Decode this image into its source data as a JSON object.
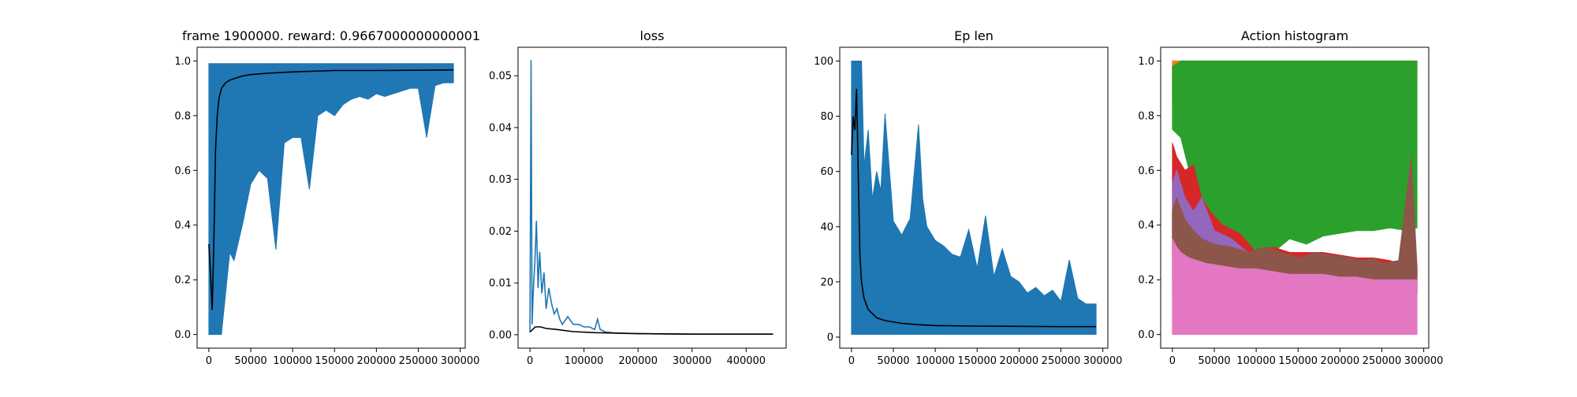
{
  "chart_data": [
    {
      "type": "line",
      "title": "frame 1900000. reward: 0.9667000000000001",
      "xlabel": "",
      "ylabel": "",
      "xlim": [
        -14000,
        306000
      ],
      "ylim": [
        -0.05,
        1.05
      ],
      "xticks": [
        0,
        50000,
        100000,
        150000,
        200000,
        250000,
        300000
      ],
      "yticks": [
        0.0,
        0.2,
        0.4,
        0.6,
        0.8,
        1.0
      ],
      "xtick_labels": [
        "0",
        "50000",
        "100000",
        "150000",
        "200000",
        "250000",
        "300000"
      ],
      "ytick_labels": [
        "0.0",
        "0.2",
        "0.4",
        "0.6",
        "0.8",
        "1.0"
      ],
      "grid": false,
      "series": [
        {
          "color": "#1f77b4",
          "style": "band",
          "x": [
            0,
            5000,
            10000,
            15000,
            20000,
            25000,
            30000,
            40000,
            50000,
            60000,
            70000,
            80000,
            90000,
            100000,
            110000,
            120000,
            130000,
            140000,
            150000,
            160000,
            170000,
            180000,
            190000,
            200000,
            210000,
            220000,
            230000,
            240000,
            250000,
            260000,
            270000,
            280000,
            292000
          ],
          "upper": [
            0.99,
            0.99,
            0.99,
            0.99,
            0.99,
            0.99,
            0.99,
            0.99,
            0.99,
            0.99,
            0.99,
            0.99,
            0.99,
            0.99,
            0.99,
            0.99,
            0.99,
            0.99,
            0.99,
            0.99,
            0.99,
            0.99,
            0.99,
            0.99,
            0.99,
            0.99,
            0.99,
            0.99,
            0.99,
            0.99,
            0.99,
            0.99,
            0.99
          ],
          "lower": [
            0.0,
            0.0,
            0.0,
            0.0,
            0.15,
            0.3,
            0.27,
            0.4,
            0.55,
            0.6,
            0.57,
            0.31,
            0.7,
            0.72,
            0.72,
            0.53,
            0.8,
            0.82,
            0.8,
            0.84,
            0.86,
            0.87,
            0.86,
            0.88,
            0.87,
            0.88,
            0.89,
            0.9,
            0.9,
            0.72,
            0.91,
            0.92,
            0.92
          ]
        },
        {
          "color": "#000000",
          "style": "line",
          "x": [
            0,
            2000,
            4000,
            6000,
            8000,
            10000,
            12000,
            15000,
            20000,
            25000,
            30000,
            40000,
            50000,
            70000,
            100000,
            150000,
            200000,
            250000,
            292000
          ],
          "values": [
            0.33,
            0.22,
            0.09,
            0.35,
            0.68,
            0.8,
            0.86,
            0.9,
            0.92,
            0.93,
            0.935,
            0.945,
            0.95,
            0.955,
            0.96,
            0.965,
            0.965,
            0.966,
            0.967
          ]
        }
      ]
    },
    {
      "type": "line",
      "title": "loss",
      "xlabel": "",
      "ylabel": "",
      "xlim": [
        -22000,
        474000
      ],
      "ylim": [
        -0.0026,
        0.0555
      ],
      "xticks": [
        0,
        100000,
        200000,
        300000,
        400000
      ],
      "yticks": [
        0.0,
        0.01,
        0.02,
        0.03,
        0.04,
        0.05
      ],
      "xtick_labels": [
        "0",
        "100000",
        "200000",
        "300000",
        "400000"
      ],
      "ytick_labels": [
        "0.00",
        "0.01",
        "0.02",
        "0.03",
        "0.04",
        "0.05"
      ],
      "grid": false,
      "series": [
        {
          "color": "#1f77b4",
          "style": "line",
          "x": [
            0,
            2000,
            4000,
            6000,
            9000,
            12000,
            15000,
            18000,
            22000,
            26000,
            30000,
            35000,
            40000,
            45000,
            50000,
            55000,
            60000,
            70000,
            80000,
            90000,
            100000,
            110000,
            120000,
            125000,
            130000,
            140000,
            160000,
            200000,
            300000,
            450000
          ],
          "values": [
            0.0005,
            0.053,
            0.002,
            0.008,
            0.014,
            0.022,
            0.009,
            0.016,
            0.008,
            0.012,
            0.005,
            0.009,
            0.006,
            0.004,
            0.005,
            0.003,
            0.002,
            0.0035,
            0.002,
            0.002,
            0.0015,
            0.0015,
            0.001,
            0.003,
            0.001,
            0.0005,
            0.0003,
            0.0002,
            0.0001,
            0.0001
          ]
        },
        {
          "color": "#000000",
          "style": "line",
          "x": [
            0,
            5000,
            10000,
            20000,
            30000,
            50000,
            80000,
            120000,
            200000,
            300000,
            450000
          ],
          "values": [
            0.0005,
            0.001,
            0.0015,
            0.0015,
            0.0012,
            0.001,
            0.0006,
            0.0004,
            0.0002,
            0.0001,
            0.0001
          ]
        }
      ]
    },
    {
      "type": "line",
      "title": "Ep len",
      "xlabel": "",
      "ylabel": "",
      "xlim": [
        -14000,
        306000
      ],
      "ylim": [
        -4,
        105
      ],
      "xticks": [
        0,
        50000,
        100000,
        150000,
        200000,
        250000,
        300000
      ],
      "yticks": [
        0,
        20,
        40,
        60,
        80,
        100
      ],
      "xtick_labels": [
        "0",
        "50000",
        "100000",
        "150000",
        "200000",
        "250000",
        "300000"
      ],
      "ytick_labels": [
        "0",
        "20",
        "40",
        "60",
        "80",
        "100"
      ],
      "grid": false,
      "series": [
        {
          "color": "#1f77b4",
          "style": "band",
          "x": [
            0,
            5000,
            10000,
            12000,
            15000,
            20000,
            25000,
            30000,
            35000,
            40000,
            50000,
            60000,
            70000,
            80000,
            85000,
            90000,
            100000,
            110000,
            120000,
            130000,
            140000,
            150000,
            160000,
            170000,
            180000,
            190000,
            200000,
            210000,
            220000,
            230000,
            240000,
            250000,
            260000,
            270000,
            280000,
            292000
          ],
          "upper": [
            100,
            100,
            100,
            100,
            62,
            75,
            50,
            60,
            53,
            81,
            42,
            37,
            43,
            77,
            50,
            40,
            35,
            33,
            30,
            29,
            39,
            25,
            44,
            22,
            32,
            22,
            20,
            16,
            18,
            15,
            17,
            13,
            28,
            14,
            12,
            12
          ],
          "lower": [
            1,
            1,
            1,
            1,
            1,
            1,
            1,
            1,
            1,
            1,
            1,
            1,
            1,
            1,
            1,
            1,
            1,
            1,
            1,
            1,
            1,
            1,
            1,
            1,
            1,
            1,
            1,
            1,
            1,
            1,
            1,
            1,
            1,
            1,
            1,
            1
          ]
        },
        {
          "color": "#000000",
          "style": "line",
          "x": [
            0,
            2000,
            4000,
            6000,
            8000,
            10000,
            12000,
            15000,
            20000,
            30000,
            40000,
            60000,
            80000,
            100000,
            150000,
            200000,
            250000,
            292000
          ],
          "values": [
            66,
            80,
            75,
            90,
            60,
            30,
            20,
            14,
            10,
            7,
            6,
            5,
            4.5,
            4.2,
            4,
            3.9,
            3.8,
            3.8
          ]
        }
      ]
    },
    {
      "type": "area",
      "title": "Action histogram",
      "xlabel": "",
      "ylabel": "",
      "xlim": [
        -14000,
        306000
      ],
      "ylim": [
        -0.05,
        1.05
      ],
      "xticks": [
        0,
        50000,
        100000,
        150000,
        200000,
        250000,
        300000
      ],
      "yticks": [
        0.0,
        0.2,
        0.4,
        0.6,
        0.8,
        1.0
      ],
      "xtick_labels": [
        "0",
        "50000",
        "100000",
        "150000",
        "200000",
        "250000",
        "300000"
      ],
      "ytick_labels": [
        "0.0",
        "0.2",
        "0.4",
        "0.6",
        "0.8",
        "1.0"
      ],
      "grid": false,
      "series": [
        {
          "color": "#1f77b4",
          "style": "band",
          "x": [
            0,
            5000
          ],
          "upper": [
            1.0,
            1.0
          ],
          "lower": [
            0.95,
            0.95
          ]
        },
        {
          "color": "#ff7f0e",
          "style": "band",
          "x": [
            0,
            5000,
            10000,
            285000,
            292000
          ],
          "upper": [
            1.0,
            1.0,
            1.0,
            1.0,
            1.0
          ],
          "lower": [
            0.85,
            0.9,
            0.95,
            0.97,
            0.95
          ]
        },
        {
          "color": "#2ca02c",
          "style": "band",
          "x": [
            0,
            10000,
            20000,
            30000,
            40000,
            60000,
            80000,
            100000,
            120000,
            140000,
            160000,
            180000,
            200000,
            220000,
            240000,
            260000,
            280000,
            292000
          ],
          "upper": [
            0.98,
            1.0,
            1.0,
            1.0,
            1.0,
            1.0,
            1.0,
            1.0,
            1.0,
            1.0,
            1.0,
            1.0,
            1.0,
            1.0,
            1.0,
            1.0,
            1.0,
            1.0
          ],
          "lower": [
            0.75,
            0.72,
            0.6,
            0.45,
            0.42,
            0.38,
            0.32,
            0.28,
            0.3,
            0.35,
            0.33,
            0.36,
            0.37,
            0.38,
            0.38,
            0.39,
            0.38,
            0.39
          ]
        },
        {
          "color": "#d62728",
          "style": "band",
          "x": [
            0,
            5000,
            15000,
            25000,
            35000,
            45000,
            60000,
            80000,
            100000,
            120000,
            140000,
            160000,
            180000,
            200000,
            220000,
            240000,
            260000,
            280000,
            292000
          ],
          "upper": [
            0.7,
            0.65,
            0.6,
            0.62,
            0.5,
            0.45,
            0.4,
            0.37,
            0.3,
            0.32,
            0.3,
            0.3,
            0.3,
            0.29,
            0.28,
            0.28,
            0.27,
            0.25,
            0.24
          ],
          "lower": [
            0.3,
            0.3,
            0.3,
            0.3,
            0.28,
            0.25,
            0.2,
            0.18,
            0.15,
            0.15,
            0.15,
            0.15,
            0.15,
            0.15,
            0.15,
            0.15,
            0.15,
            0.15,
            0.15
          ]
        },
        {
          "color": "#9467bd",
          "style": "band",
          "x": [
            0,
            5000,
            15000,
            25000,
            35000,
            50000,
            70000,
            90000,
            110000,
            130000,
            150000,
            170000,
            190000,
            210000,
            230000,
            250000,
            270000,
            292000
          ],
          "upper": [
            0.55,
            0.6,
            0.5,
            0.45,
            0.5,
            0.38,
            0.35,
            0.3,
            0.3,
            0.28,
            0.28,
            0.28,
            0.27,
            0.27,
            0.26,
            0.26,
            0.25,
            0.25
          ],
          "lower": [
            0.2,
            0.2,
            0.2,
            0.2,
            0.18,
            0.18,
            0.16,
            0.15,
            0.15,
            0.15,
            0.15,
            0.15,
            0.15,
            0.15,
            0.15,
            0.15,
            0.15,
            0.15
          ]
        },
        {
          "color": "#8c564b",
          "style": "band",
          "x": [
            0,
            5000,
            15000,
            25000,
            35000,
            50000,
            70000,
            90000,
            110000,
            130000,
            150000,
            170000,
            190000,
            210000,
            230000,
            240000,
            250000,
            270000,
            285000,
            292000
          ],
          "upper": [
            0.45,
            0.5,
            0.42,
            0.38,
            0.35,
            0.33,
            0.32,
            0.3,
            0.32,
            0.3,
            0.28,
            0.3,
            0.29,
            0.28,
            0.27,
            0.28,
            0.26,
            0.27,
            0.65,
            0.25
          ],
          "lower": [
            0.15,
            0.15,
            0.15,
            0.15,
            0.15,
            0.15,
            0.15,
            0.15,
            0.15,
            0.15,
            0.15,
            0.15,
            0.15,
            0.15,
            0.15,
            0.15,
            0.15,
            0.15,
            0.15,
            0.15
          ]
        },
        {
          "color": "#e377c2",
          "style": "band",
          "x": [
            0,
            5000,
            10000,
            20000,
            40000,
            60000,
            80000,
            100000,
            120000,
            140000,
            160000,
            180000,
            200000,
            220000,
            240000,
            260000,
            280000,
            292000
          ],
          "upper": [
            0.35,
            0.32,
            0.3,
            0.28,
            0.26,
            0.25,
            0.24,
            0.24,
            0.23,
            0.22,
            0.22,
            0.22,
            0.21,
            0.21,
            0.2,
            0.2,
            0.2,
            0.2
          ],
          "lower": [
            0.0,
            0.0,
            0.0,
            0.0,
            0.0,
            0.0,
            0.0,
            0.0,
            0.0,
            0.0,
            0.0,
            0.0,
            0.0,
            0.0,
            0.0,
            0.0,
            0.0,
            0.0
          ]
        }
      ]
    }
  ]
}
